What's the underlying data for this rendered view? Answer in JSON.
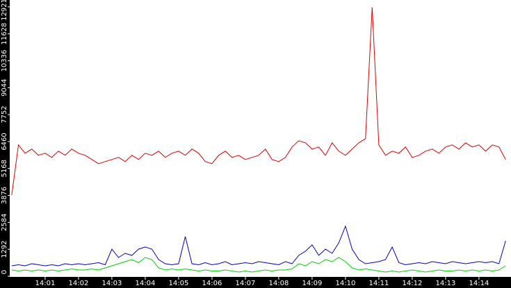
{
  "chart_data": {
    "type": "line",
    "x": [
      0,
      0.2,
      0.4,
      0.6,
      0.8,
      1.0,
      1.2,
      1.4,
      1.6,
      1.8,
      2.0,
      2.2,
      2.4,
      2.6,
      2.8,
      3.0,
      3.2,
      3.4,
      3.6,
      3.8,
      4.0,
      4.2,
      4.4,
      4.6,
      4.8,
      5.0,
      5.2,
      5.4,
      5.6,
      5.8,
      6.0,
      6.2,
      6.4,
      6.6,
      6.8,
      7.0,
      7.2,
      7.4,
      7.6,
      7.8,
      8.0,
      8.2,
      8.4,
      8.6,
      8.8,
      9.0,
      9.2,
      9.4,
      9.6,
      9.8,
      10.0,
      10.2,
      10.4,
      10.6,
      10.8,
      11.0,
      11.2,
      11.4,
      11.6,
      11.8,
      12.0,
      12.2,
      12.4,
      12.6,
      12.8,
      13.0,
      13.2,
      13.4,
      13.6,
      13.8,
      14.0,
      14.2,
      14.4,
      14.6,
      14.8
    ],
    "series": [
      {
        "color": "#e00000",
        "values": [
          3900,
          6300,
          5900,
          6100,
          5800,
          5900,
          5700,
          6000,
          5800,
          6100,
          5900,
          5800,
          5600,
          5400,
          5500,
          5600,
          5700,
          5500,
          5800,
          5600,
          5900,
          5800,
          6000,
          5700,
          5900,
          6000,
          5800,
          6100,
          5900,
          5500,
          5400,
          5800,
          6000,
          5700,
          5800,
          5600,
          5700,
          5800,
          6100,
          5600,
          5500,
          5700,
          6200,
          6500,
          6400,
          6100,
          6200,
          5800,
          6400,
          6000,
          5800,
          6100,
          6400,
          6600,
          12900,
          6300,
          5800,
          6000,
          5900,
          6200,
          5700,
          5800,
          6000,
          6100,
          5900,
          6200,
          6300,
          6100,
          6400,
          6200,
          6300,
          6000,
          6300,
          6200,
          5600
        ]
      },
      {
        "color": "#0000c8",
        "values": [
          500,
          550,
          500,
          600,
          550,
          500,
          550,
          500,
          600,
          550,
          600,
          550,
          600,
          650,
          550,
          1300,
          900,
          1100,
          1000,
          1300,
          1400,
          1300,
          800,
          600,
          550,
          600,
          1900,
          600,
          550,
          650,
          550,
          600,
          700,
          550,
          600,
          650,
          600,
          700,
          650,
          600,
          550,
          700,
          600,
          1000,
          1200,
          1500,
          1000,
          1300,
          1100,
          1600,
          2400,
          1300,
          800,
          600,
          650,
          700,
          800,
          1400,
          650,
          550,
          600,
          650,
          600,
          700,
          650,
          600,
          700,
          650,
          600,
          650,
          700,
          650,
          700,
          600,
          1700
        ]
      },
      {
        "color": "#00d000",
        "values": [
          300,
          250,
          300,
          250,
          300,
          250,
          300,
          250,
          300,
          350,
          300,
          300,
          350,
          300,
          400,
          500,
          600,
          700,
          800,
          650,
          900,
          800,
          400,
          300,
          350,
          300,
          350,
          300,
          250,
          300,
          250,
          250,
          300,
          250,
          200,
          250,
          200,
          250,
          300,
          250,
          300,
          300,
          350,
          600,
          500,
          700,
          600,
          800,
          700,
          900,
          700,
          400,
          300,
          350,
          300,
          250,
          200,
          250,
          200,
          250,
          300,
          250,
          200,
          250,
          300,
          250,
          250,
          300,
          250,
          300,
          250,
          300,
          250,
          300,
          500
        ]
      }
    ],
    "xlim": [
      -0.04,
      14.96
    ],
    "xticks": [
      {
        "value": 1,
        "label": "14:01"
      },
      {
        "value": 2,
        "label": "14:02"
      },
      {
        "value": 3,
        "label": "14:03"
      },
      {
        "value": 4,
        "label": "14:04"
      },
      {
        "value": 5,
        "label": "14:05"
      },
      {
        "value": 6,
        "label": "14:06"
      },
      {
        "value": 7,
        "label": "14:07"
      },
      {
        "value": 8,
        "label": "14:08"
      },
      {
        "value": 9,
        "label": "14:09"
      },
      {
        "value": 10,
        "label": "14:10"
      },
      {
        "value": 11,
        "label": "14:11"
      },
      {
        "value": 12,
        "label": "14:12"
      },
      {
        "value": 13,
        "label": "14:13"
      },
      {
        "value": 14,
        "label": "14:14"
      }
    ],
    "ylim": [
      0,
      13250
    ],
    "yticks": [
      0,
      1292,
      2584,
      3876,
      5168,
      6460,
      7752,
      9044,
      10336,
      11628,
      12921
    ]
  }
}
